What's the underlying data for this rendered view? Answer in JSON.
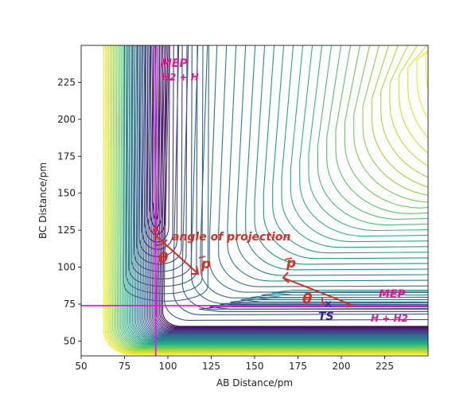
{
  "chart_data": {
    "type": "contour",
    "xlabel": "AB Distance/pm",
    "ylabel": "BC Distance/pm",
    "xlim": [
      50,
      250
    ],
    "ylim": [
      40,
      250
    ],
    "xticks": [
      50,
      75,
      100,
      125,
      150,
      175,
      200,
      225
    ],
    "yticks": [
      50,
      75,
      100,
      125,
      150,
      175,
      200,
      225
    ],
    "colormap": "viridis",
    "grid": false,
    "reference_lines": {
      "vertical_x": 93,
      "horizontal_y": 74,
      "color": "#ff00ff"
    },
    "annotations": {
      "mep_top": "MEP",
      "h2_plus_h": "H2 + H",
      "angle_of_projection": "angle of projection",
      "theta_left": "θ",
      "p_left": "p",
      "p_right": "p",
      "theta_right": "θ",
      "ts_marker": "×",
      "ts": "TS",
      "mep_right": "MEP",
      "h_plus_h2": "H + H2"
    }
  }
}
